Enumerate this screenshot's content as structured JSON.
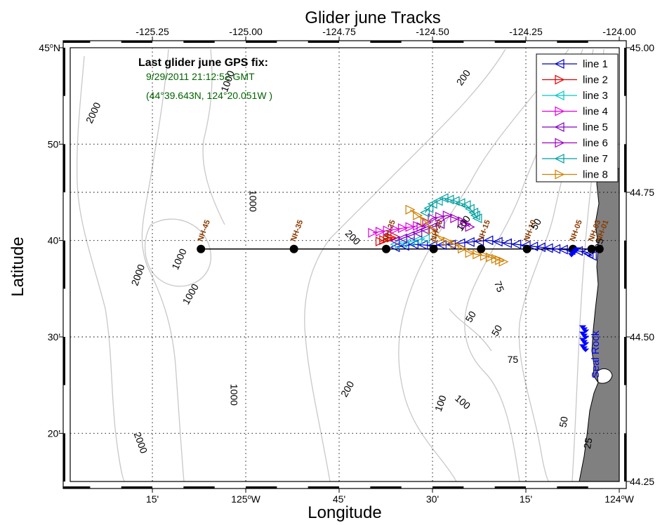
{
  "chart_data": {
    "type": "line",
    "title": "Glider june Tracks",
    "xlabel": "Longitude",
    "ylabel": "Latitude",
    "xlim": [
      -125.47,
      -124.0
    ],
    "ylim": [
      44.25,
      45.0
    ],
    "grid": true,
    "legend_position": "top-right",
    "top_ticks": [
      "-125.25",
      "-125.00",
      "-124.75",
      "-124.50",
      "-124.25",
      "-124.00"
    ],
    "top_tick_values": [
      -125.25,
      -125.0,
      -124.75,
      -124.5,
      -124.25,
      -124.0
    ],
    "bottom_ticks": [
      {
        "lon": -125.25,
        "label": "15'"
      },
      {
        "lon": -125.0,
        "label": "125°W"
      },
      {
        "lon": -124.75,
        "label": "45'"
      },
      {
        "lon": -124.5,
        "label": "30'"
      },
      {
        "lon": -124.25,
        "label": "15'"
      },
      {
        "lon": -124.0,
        "label": "124°W"
      }
    ],
    "left_ticks": [
      {
        "lat": 45.0,
        "label": "45°N"
      },
      {
        "lat": 44.8333,
        "label": "50'"
      },
      {
        "lat": 44.6667,
        "label": "40'"
      },
      {
        "lat": 44.5,
        "label": "30'"
      },
      {
        "lat": 44.3333,
        "label": "20'"
      }
    ],
    "right_ticks": [
      "45.00",
      "44.75",
      "44.50",
      "44.25"
    ],
    "right_tick_values": [
      45.0,
      44.75,
      44.5,
      44.25
    ],
    "annotation": {
      "heading": "Last glider june GPS fix:",
      "line1": "9/29/2011 21:12:52 GMT",
      "line2": "(44°39.643N, 124°20.051W )"
    },
    "legend": [
      {
        "name": "line 1",
        "color": "#0000c8",
        "marker": "left"
      },
      {
        "name": "line 2",
        "color": "#e00000",
        "marker": "right"
      },
      {
        "name": "line 3",
        "color": "#00c8c8",
        "marker": "left"
      },
      {
        "name": "line 4",
        "color": "#e000e0",
        "marker": "right"
      },
      {
        "name": "line 5",
        "color": "#8000c0",
        "marker": "left"
      },
      {
        "name": "line 6",
        "color": "#a000c0",
        "marker": "right"
      },
      {
        "name": "line 7",
        "color": "#00a0a0",
        "marker": "left"
      },
      {
        "name": "line 8",
        "color": "#d08000",
        "marker": "right"
      }
    ],
    "stations": [
      {
        "name": "NH-45",
        "lon": -125.12,
        "lat": 44.652
      },
      {
        "name": "NH-35",
        "lon": -124.871,
        "lat": 44.652
      },
      {
        "name": "NH-25",
        "lon": -124.624,
        "lat": 44.652
      },
      {
        "name": "NH-20",
        "lon": -124.497,
        "lat": 44.652
      },
      {
        "name": "NH-15",
        "lon": -124.37,
        "lat": 44.652
      },
      {
        "name": "NH-10",
        "lon": -124.247,
        "lat": 44.652
      },
      {
        "name": "NH-05",
        "lon": -124.124,
        "lat": 44.652
      },
      {
        "name": "NH-03",
        "lon": -124.074,
        "lat": 44.652
      },
      {
        "name": "NH-01",
        "lon": -124.053,
        "lat": 44.652
      }
    ],
    "contour_labels": [
      {
        "text": "1000",
        "lon": -125.04,
        "lat": 44.94,
        "rot": -70
      },
      {
        "text": "2000",
        "lon": -125.4,
        "lat": 44.885,
        "rot": -65
      },
      {
        "text": "200",
        "lon": -124.41,
        "lat": 44.945,
        "rot": -55
      },
      {
        "text": "1000",
        "lon": -124.99,
        "lat": 44.735,
        "rot": 90
      },
      {
        "text": "200",
        "lon": -124.72,
        "lat": 44.668,
        "rot": 45
      },
      {
        "text": "1000",
        "lon": -125.17,
        "lat": 44.632,
        "rot": -65
      },
      {
        "text": "2000",
        "lon": -125.28,
        "lat": 44.605,
        "rot": -70
      },
      {
        "text": "1000",
        "lon": -125.14,
        "lat": 44.571,
        "rot": -60
      },
      {
        "text": "1000",
        "lon": -125.04,
        "lat": 44.4,
        "rot": 90
      },
      {
        "text": "200",
        "lon": -124.72,
        "lat": 44.407,
        "rot": -60
      },
      {
        "text": "2000",
        "lon": -125.29,
        "lat": 44.315,
        "rot": 70
      },
      {
        "text": "100",
        "lon": -124.41,
        "lat": 44.693,
        "rot": -55
      },
      {
        "text": "50",
        "lon": -124.215,
        "lat": 44.692,
        "rot": -60
      },
      {
        "text": "75",
        "lon": -124.33,
        "lat": 44.585,
        "rot": 70
      },
      {
        "text": "50",
        "lon": -124.39,
        "lat": 44.532,
        "rot": -60
      },
      {
        "text": "50",
        "lon": -124.32,
        "lat": 44.508,
        "rot": -60
      },
      {
        "text": "75",
        "lon": -124.285,
        "lat": 44.455,
        "rot": 0
      },
      {
        "text": "100",
        "lon": -124.47,
        "lat": 44.383,
        "rot": -70
      },
      {
        "text": "100",
        "lon": -124.425,
        "lat": 44.383,
        "rot": 40
      },
      {
        "text": "50",
        "lon": -124.14,
        "lat": 44.352,
        "rot": -80
      },
      {
        "text": "25",
        "lon": -124.075,
        "lat": 44.315,
        "rot": -80
      },
      {
        "text": "25",
        "lon": -124.045,
        "lat": 44.66,
        "rot": -80
      }
    ],
    "coast_label": "Seal Rock",
    "tracks": [
      {
        "name": "line 1",
        "points": [
          [
            -124.073,
            44.64
          ],
          [
            -124.09,
            44.647
          ],
          [
            -124.13,
            44.65
          ],
          [
            -124.17,
            44.652
          ],
          [
            -124.21,
            44.655
          ],
          [
            -124.25,
            44.658
          ],
          [
            -124.3,
            44.662
          ],
          [
            -124.35,
            44.667
          ],
          [
            -124.4,
            44.664
          ],
          [
            -124.45,
            44.66
          ],
          [
            -124.5,
            44.658
          ],
          [
            -124.55,
            44.66
          ],
          [
            -124.6,
            44.655
          ]
        ]
      },
      {
        "name": "line 2",
        "points": [
          [
            -124.64,
            44.665
          ],
          [
            -124.62,
            44.67
          ],
          [
            -124.6,
            44.673
          ]
        ]
      },
      {
        "name": "line 3",
        "points": [
          [
            -124.6,
            44.66
          ],
          [
            -124.56,
            44.665
          ],
          [
            -124.52,
            44.67
          ]
        ]
      },
      {
        "name": "line 4",
        "points": [
          [
            -124.66,
            44.68
          ],
          [
            -124.62,
            44.684
          ],
          [
            -124.58,
            44.688
          ],
          [
            -124.54,
            44.692
          ]
        ]
      },
      {
        "name": "line 5",
        "points": [
          [
            -124.6,
            44.666
          ],
          [
            -124.56,
            44.675
          ],
          [
            -124.52,
            44.685
          ],
          [
            -124.48,
            44.695
          ]
        ]
      },
      {
        "name": "line 6",
        "points": [
          [
            -124.53,
            44.69
          ],
          [
            -124.5,
            44.705
          ],
          [
            -124.46,
            44.71
          ],
          [
            -124.42,
            44.7
          ],
          [
            -124.4,
            44.69
          ]
        ]
      },
      {
        "name": "line 7",
        "points": [
          [
            -124.52,
            44.715
          ],
          [
            -124.5,
            44.73
          ],
          [
            -124.47,
            44.74
          ],
          [
            -124.44,
            44.735
          ],
          [
            -124.41,
            44.728
          ],
          [
            -124.39,
            44.715
          ],
          [
            -124.38,
            44.705
          ]
        ]
      },
      {
        "name": "line 8",
        "points": [
          [
            -124.56,
            44.72
          ],
          [
            -124.52,
            44.7
          ],
          [
            -124.48,
            44.67
          ],
          [
            -124.44,
            44.66
          ],
          [
            -124.4,
            44.645
          ],
          [
            -124.36,
            44.64
          ],
          [
            -124.33,
            44.635
          ],
          [
            -124.31,
            44.63
          ]
        ]
      }
    ]
  }
}
